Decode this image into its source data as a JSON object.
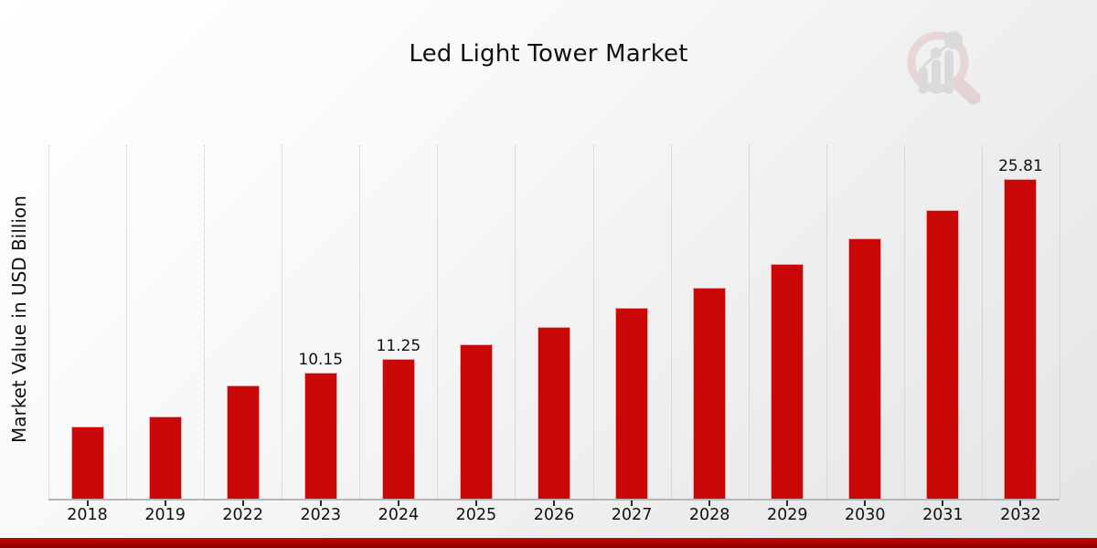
{
  "title": "Led Light Tower Market",
  "ylabel": "Market Value in USD Billion",
  "watermark_icon": "magnifier-bar-chart-logo",
  "colors": {
    "bar": "#c90707",
    "footer_strip": "#ab0202",
    "gridline": "#c3c3c4",
    "axis_line": "#b5b5b5",
    "text": "#111111",
    "watermark_pink": "#e5cbcb",
    "watermark_gray": "#c9c9cb"
  },
  "chart_data": {
    "type": "bar",
    "title": "Led Light Tower Market",
    "xlabel": "",
    "ylabel": "Market Value in USD Billion",
    "categories": [
      "2018",
      "2019",
      "2022",
      "2023",
      "2024",
      "2025",
      "2026",
      "2027",
      "2028",
      "2029",
      "2030",
      "2031",
      "2032"
    ],
    "values": [
      5.8,
      6.65,
      9.15,
      10.15,
      11.25,
      12.48,
      13.85,
      15.36,
      17.04,
      18.91,
      20.98,
      23.27,
      25.81
    ],
    "annotations": [
      {
        "category": "2023",
        "text": "10.15"
      },
      {
        "category": "2024",
        "text": "11.25"
      },
      {
        "category": "2032",
        "text": "25.81"
      }
    ],
    "ylim": [
      0,
      28.5
    ],
    "bar_color": "#c90707",
    "grid": "vertical-dotted",
    "legend": "none",
    "y_axis_ticks_visible": false
  }
}
